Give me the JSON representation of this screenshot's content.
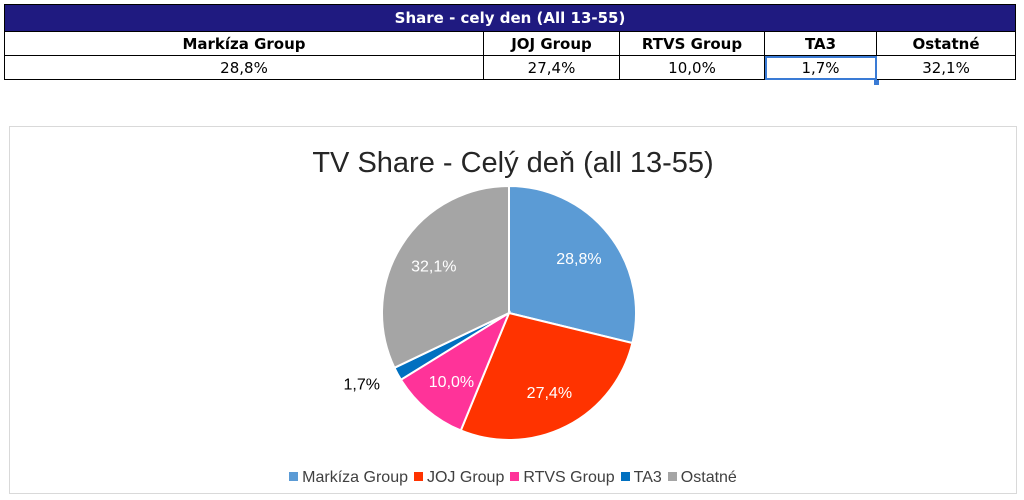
{
  "table": {
    "title": "Share - cely den (All 13-55)",
    "headers": [
      "Markíza Group",
      "JOJ Group",
      "RTVS Group",
      "TA3",
      "Ostatné"
    ],
    "values": [
      "28,8%",
      "27,4%",
      "10,0%",
      "1,7%",
      "32,1%"
    ],
    "selected_cell": "TA3"
  },
  "chart_data": {
    "type": "pie",
    "title": "TV Share - Celý deň (all 13-55)",
    "categories": [
      "Markíza Group",
      "JOJ Group",
      "RTVS Group",
      "TA3",
      "Ostatné"
    ],
    "values": [
      28.8,
      27.4,
      10.0,
      1.7,
      32.1
    ],
    "data_labels": [
      "28,8%",
      "27,4%",
      "10,0%",
      "1,7%",
      "32,1%"
    ],
    "colors": [
      "#5b9bd5",
      "#ff3300",
      "#ff3399",
      "#0070c0",
      "#a5a5a5"
    ],
    "legend_position": "bottom",
    "start_angle_deg": 0,
    "direction": "clockwise"
  }
}
